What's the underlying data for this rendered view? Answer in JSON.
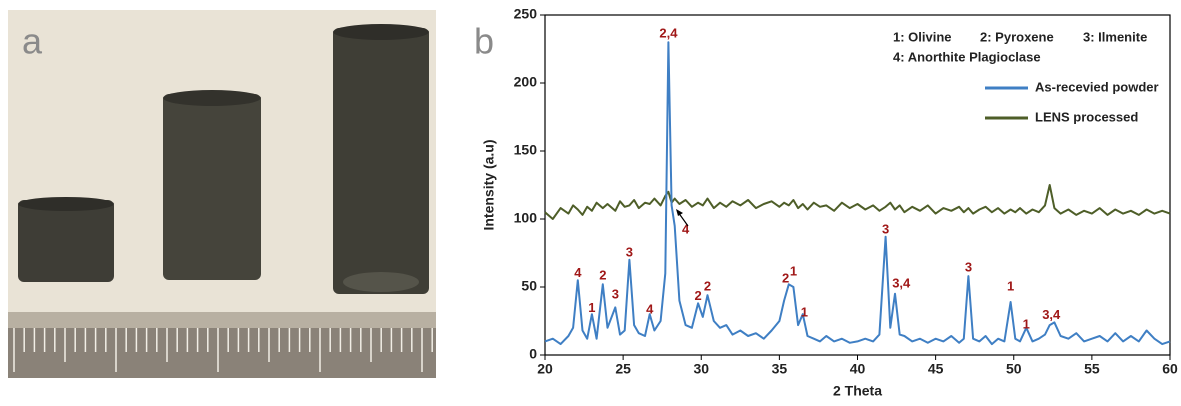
{
  "panels": [
    "a",
    "b"
  ],
  "chart_data": {
    "type": "line",
    "xlabel": "2 Theta",
    "ylabel": "Intensity (a.u)",
    "xlim": [
      20,
      60
    ],
    "ylim": [
      0,
      250
    ],
    "xticks": [
      20,
      25,
      30,
      35,
      40,
      45,
      50,
      55,
      60
    ],
    "yticks": [
      0,
      50,
      100,
      150,
      200,
      250
    ],
    "legend_notes": [
      "1: Olivine",
      "2: Pyroxene",
      "3: Ilmenite",
      "4: Anorthite Plagioclase"
    ],
    "x": [
      20,
      20.5,
      21,
      21.5,
      21.8,
      22.1,
      22.4,
      22.7,
      23.0,
      23.3,
      23.7,
      24.0,
      24.5,
      24.8,
      25.1,
      25.4,
      25.7,
      26.0,
      26.4,
      26.7,
      27.0,
      27.4,
      27.7,
      27.9,
      28.1,
      28.3,
      28.6,
      29.0,
      29.4,
      29.8,
      30.1,
      30.4,
      30.8,
      31.2,
      31.6,
      32,
      32.5,
      33,
      33.5,
      34,
      34.5,
      35,
      35.3,
      35.6,
      35.9,
      36.2,
      36.5,
      36.8,
      37.2,
      37.6,
      38,
      38.5,
      39,
      39.5,
      40,
      40.5,
      41,
      41.4,
      41.8,
      42.1,
      42.4,
      42.7,
      43,
      43.5,
      44,
      44.5,
      45,
      45.5,
      46,
      46.5,
      46.8,
      47.1,
      47.4,
      47.8,
      48.2,
      48.6,
      49,
      49.4,
      49.8,
      50.1,
      50.4,
      50.8,
      51.2,
      51.6,
      52,
      52.3,
      52.6,
      53,
      53.5,
      54,
      54.5,
      55,
      55.5,
      56,
      56.5,
      57,
      57.5,
      58,
      58.5,
      59,
      59.5,
      60
    ],
    "series": [
      {
        "name": "As-recevied powder",
        "color": "#3f7fc4",
        "values": [
          10,
          12,
          8,
          14,
          20,
          55,
          18,
          12,
          30,
          12,
          52,
          20,
          35,
          15,
          18,
          70,
          22,
          16,
          14,
          30,
          18,
          25,
          60,
          230,
          110,
          95,
          40,
          22,
          20,
          38,
          28,
          44,
          25,
          20,
          22,
          15,
          18,
          14,
          16,
          12,
          18,
          25,
          40,
          52,
          50,
          22,
          30,
          14,
          12,
          10,
          14,
          10,
          12,
          9,
          10,
          12,
          10,
          15,
          87,
          20,
          45,
          15,
          14,
          10,
          12,
          9,
          12,
          10,
          14,
          9,
          12,
          58,
          12,
          10,
          14,
          8,
          12,
          10,
          39,
          12,
          10,
          20,
          10,
          12,
          15,
          22,
          24,
          14,
          12,
          16,
          10,
          12,
          14,
          10,
          16,
          10,
          14,
          10,
          18,
          12,
          8,
          10
        ]
      },
      {
        "name": "LENS processed",
        "color": "#4e5e28",
        "values": [
          105,
          100,
          108,
          104,
          110,
          107,
          103,
          109,
          106,
          112,
          108,
          111,
          106,
          113,
          109,
          110,
          114,
          108,
          112,
          111,
          115,
          110,
          117,
          120,
          112,
          115,
          111,
          114,
          109,
          112,
          110,
          115,
          108,
          112,
          109,
          113,
          110,
          114,
          108,
          111,
          113,
          109,
          112,
          110,
          114,
          108,
          111,
          107,
          112,
          109,
          110,
          106,
          112,
          108,
          111,
          107,
          110,
          106,
          109,
          112,
          107,
          110,
          105,
          109,
          106,
          110,
          104,
          108,
          106,
          109,
          105,
          108,
          104,
          107,
          109,
          105,
          108,
          104,
          107,
          105,
          108,
          104,
          107,
          105,
          110,
          125,
          108,
          104,
          107,
          103,
          106,
          104,
          108,
          103,
          107,
          104,
          106,
          103,
          107,
          104,
          106,
          104
        ]
      }
    ],
    "annotations": [
      {
        "text": "2,4",
        "x": 27.9,
        "y": 236
      },
      {
        "text": "4",
        "x": 22.1,
        "y": 60
      },
      {
        "text": "1",
        "x": 23.0,
        "y": 34
      },
      {
        "text": "2",
        "x": 23.7,
        "y": 58
      },
      {
        "text": "3",
        "x": 24.5,
        "y": 44
      },
      {
        "text": "3",
        "x": 25.4,
        "y": 75
      },
      {
        "text": "4",
        "x": 26.7,
        "y": 33
      },
      {
        "text": "4",
        "x": 29.0,
        "y": 92
      },
      {
        "text": "2",
        "x": 29.8,
        "y": 43
      },
      {
        "text": "2",
        "x": 30.4,
        "y": 50
      },
      {
        "text": "2",
        "x": 35.4,
        "y": 56
      },
      {
        "text": "1",
        "x": 35.9,
        "y": 61
      },
      {
        "text": "1",
        "x": 36.6,
        "y": 31
      },
      {
        "text": "3",
        "x": 41.8,
        "y": 92
      },
      {
        "text": "3,4",
        "x": 42.8,
        "y": 52
      },
      {
        "text": "3",
        "x": 47.1,
        "y": 64
      },
      {
        "text": "1",
        "x": 49.8,
        "y": 50
      },
      {
        "text": "1",
        "x": 50.8,
        "y": 22
      },
      {
        "text": "3,4",
        "x": 52.4,
        "y": 29
      }
    ]
  }
}
